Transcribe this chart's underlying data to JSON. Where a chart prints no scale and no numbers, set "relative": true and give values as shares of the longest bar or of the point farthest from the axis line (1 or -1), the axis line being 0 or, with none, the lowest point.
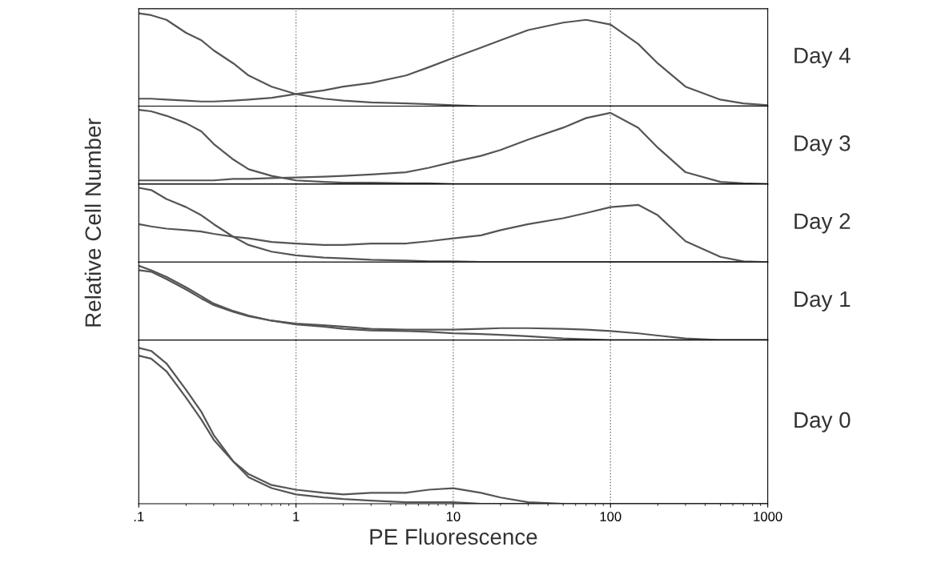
{
  "chart_data": [
    {
      "type": "line",
      "annotations": [
        "Day 4"
      ],
      "relative": true,
      "log": "x",
      "xlim": [
        0.1,
        1000
      ],
      "grid": "x",
      "tick_labels": false,
      "line_style": "solid",
      "marker": "none",
      "x": [
        0.1,
        0.12,
        0.15,
        0.2,
        0.25,
        0.3,
        0.4,
        0.5,
        0.7,
        1,
        1.5,
        2,
        3,
        5,
        7,
        10,
        15,
        20,
        30,
        50,
        70,
        100,
        150,
        200,
        300,
        500,
        700,
        1000
      ],
      "series": [
        {
          "color": "#555555",
          "values": [
            1,
            0.98,
            0.93,
            0.79,
            0.71,
            0.6,
            0.46,
            0.33,
            0.21,
            0.13,
            0.08,
            0.06,
            0.04,
            0.03,
            0.02,
            0.01,
            0,
            0,
            0,
            0,
            0,
            0,
            0,
            0,
            0,
            0,
            0,
            0
          ]
        },
        {
          "color": "#555555",
          "values": [
            0.08,
            0.08,
            0.07,
            0.06,
            0.05,
            0.05,
            0.06,
            0.07,
            0.09,
            0.13,
            0.17,
            0.21,
            0.25,
            0.33,
            0.42,
            0.52,
            0.63,
            0.71,
            0.82,
            0.9,
            0.93,
            0.88,
            0.67,
            0.46,
            0.21,
            0.07,
            0.03,
            0.01
          ]
        }
      ]
    },
    {
      "type": "line",
      "annotations": [
        "Day 3"
      ],
      "relative": true,
      "log": "x",
      "xlim": [
        0.1,
        1000
      ],
      "grid": "x",
      "tick_labels": false,
      "line_style": "solid",
      "marker": "none",
      "x": [
        0.1,
        0.12,
        0.15,
        0.2,
        0.25,
        0.3,
        0.4,
        0.5,
        0.7,
        1,
        1.5,
        2,
        3,
        5,
        7,
        10,
        15,
        20,
        30,
        50,
        70,
        100,
        150,
        200,
        300,
        500,
        700,
        1000
      ],
      "series": [
        {
          "color": "#555555",
          "values": [
            1,
            0.98,
            0.92,
            0.82,
            0.71,
            0.54,
            0.33,
            0.2,
            0.11,
            0.05,
            0.03,
            0.02,
            0.02,
            0.01,
            0.01,
            0,
            0,
            0,
            0,
            0,
            0,
            0,
            0,
            0,
            0,
            0,
            0,
            0
          ]
        },
        {
          "color": "#555555",
          "values": [
            0.05,
            0.05,
            0.05,
            0.05,
            0.05,
            0.05,
            0.07,
            0.07,
            0.08,
            0.09,
            0.1,
            0.11,
            0.13,
            0.16,
            0.22,
            0.3,
            0.38,
            0.46,
            0.6,
            0.76,
            0.89,
            0.96,
            0.76,
            0.49,
            0.16,
            0.03,
            0.01,
            0
          ]
        }
      ]
    },
    {
      "type": "line",
      "annotations": [
        "Day 2"
      ],
      "ylabel": "Relative Cell Number",
      "relative": true,
      "log": "x",
      "xlim": [
        0.1,
        1000
      ],
      "grid": "x",
      "tick_labels": false,
      "line_style": "solid",
      "marker": "none",
      "x": [
        0.1,
        0.12,
        0.15,
        0.2,
        0.25,
        0.3,
        0.4,
        0.5,
        0.7,
        1,
        1.5,
        2,
        3,
        5,
        7,
        10,
        15,
        20,
        30,
        50,
        70,
        100,
        150,
        200,
        300,
        500,
        700,
        1000
      ],
      "series": [
        {
          "color": "#555555",
          "values": [
            1,
            0.97,
            0.85,
            0.74,
            0.63,
            0.51,
            0.34,
            0.23,
            0.14,
            0.09,
            0.06,
            0.05,
            0.03,
            0.02,
            0.01,
            0.01,
            0,
            0,
            0,
            0,
            0,
            0,
            0,
            0,
            0,
            0,
            0,
            0
          ]
        },
        {
          "color": "#555555",
          "values": [
            0.51,
            0.48,
            0.45,
            0.43,
            0.41,
            0.38,
            0.34,
            0.32,
            0.27,
            0.25,
            0.23,
            0.23,
            0.25,
            0.25,
            0.28,
            0.32,
            0.36,
            0.43,
            0.51,
            0.59,
            0.66,
            0.74,
            0.77,
            0.63,
            0.28,
            0.07,
            0.01,
            0
          ]
        }
      ]
    },
    {
      "type": "line",
      "annotations": [
        "Day 1"
      ],
      "relative": true,
      "log": "x",
      "xlim": [
        0.1,
        1000
      ],
      "grid": "x",
      "tick_labels": false,
      "line_style": "solid",
      "marker": "none",
      "x": [
        0.1,
        0.12,
        0.15,
        0.2,
        0.25,
        0.3,
        0.4,
        0.5,
        0.7,
        1,
        1.5,
        2,
        3,
        5,
        7,
        10,
        15,
        20,
        30,
        50,
        70,
        100,
        150,
        200,
        300,
        500,
        700,
        1000
      ],
      "series": [
        {
          "color": "#555555",
          "values": [
            1,
            0.94,
            0.85,
            0.71,
            0.59,
            0.49,
            0.39,
            0.33,
            0.26,
            0.21,
            0.18,
            0.15,
            0.13,
            0.12,
            0.11,
            0.09,
            0.08,
            0.07,
            0.05,
            0.02,
            0.01,
            0,
            0,
            0,
            0,
            0,
            0,
            0
          ]
        },
        {
          "color": "#555555",
          "values": [
            0.94,
            0.92,
            0.82,
            0.68,
            0.56,
            0.47,
            0.38,
            0.32,
            0.26,
            0.22,
            0.2,
            0.18,
            0.15,
            0.14,
            0.14,
            0.14,
            0.15,
            0.16,
            0.16,
            0.15,
            0.14,
            0.12,
            0.09,
            0.06,
            0.02,
            0,
            0,
            0
          ]
        }
      ]
    },
    {
      "type": "line",
      "annotations": [
        "Day 0"
      ],
      "xlabel": "PE Fluorescence",
      "relative": true,
      "log": "x",
      "xlim": [
        0.1,
        1000
      ],
      "grid": "x",
      "tick_labels": "x",
      "line_style": "solid",
      "marker": "none",
      "xticks": [
        {
          "value": 0.1,
          "label": ".1"
        },
        1,
        10,
        100,
        1000
      ],
      "x": [
        0.1,
        0.12,
        0.15,
        0.2,
        0.25,
        0.3,
        0.4,
        0.5,
        0.7,
        1,
        1.5,
        2,
        3,
        5,
        7,
        10,
        15,
        20,
        30,
        50,
        70,
        100,
        150,
        200,
        300,
        500,
        700,
        1000
      ],
      "series": [
        {
          "color": "#555555",
          "values": [
            1,
            0.98,
            0.9,
            0.73,
            0.59,
            0.44,
            0.27,
            0.17,
            0.1,
            0.06,
            0.04,
            0.03,
            0.02,
            0.01,
            0.01,
            0.01,
            0,
            0,
            0,
            0,
            0,
            0,
            0,
            0,
            0,
            0,
            0,
            0
          ]
        },
        {
          "color": "#555555",
          "values": [
            0.95,
            0.93,
            0.85,
            0.68,
            0.54,
            0.41,
            0.27,
            0.19,
            0.12,
            0.09,
            0.07,
            0.06,
            0.07,
            0.07,
            0.09,
            0.1,
            0.07,
            0.04,
            0.01,
            0,
            0,
            0,
            0,
            0,
            0,
            0,
            0,
            0
          ]
        }
      ]
    }
  ]
}
